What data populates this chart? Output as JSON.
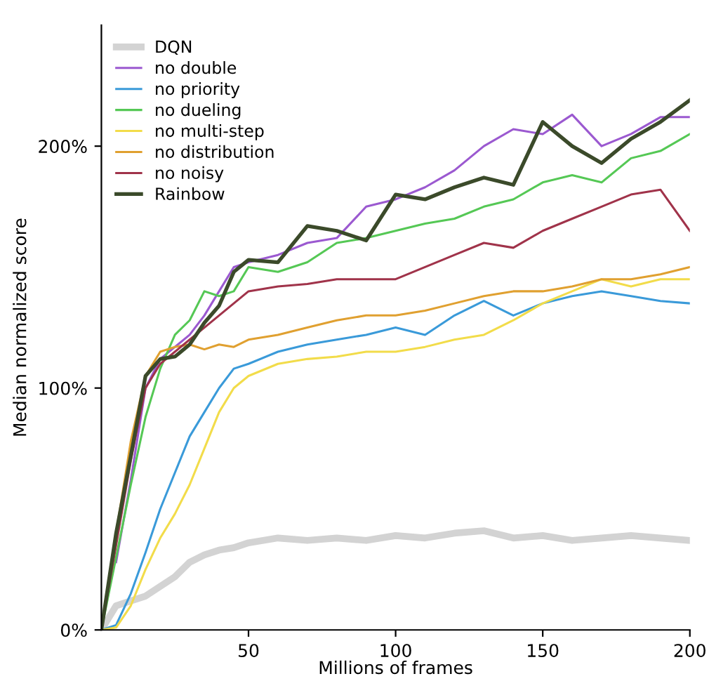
{
  "chart_data": {
    "type": "line",
    "xlabel": "Millions of frames",
    "ylabel": "Median normalized score",
    "x": [
      0,
      5,
      10,
      15,
      20,
      25,
      30,
      35,
      40,
      45,
      50,
      60,
      70,
      80,
      90,
      100,
      110,
      120,
      130,
      140,
      150,
      160,
      170,
      180,
      190,
      200
    ],
    "xlim": [
      0,
      200
    ],
    "xticks": [
      50,
      100,
      150,
      200
    ],
    "ylim": [
      0,
      250
    ],
    "yticks": [
      {
        "value": 0,
        "label": "0%"
      },
      {
        "value": 100,
        "label": "100%"
      },
      {
        "value": 200,
        "label": "200%"
      }
    ],
    "grid": false,
    "legend": "top left",
    "line_style": "solid",
    "marker": "none",
    "series": [
      {
        "name": "DQN",
        "color": "#d3d3d3",
        "values": [
          0,
          10,
          12,
          14,
          18,
          22,
          28,
          31,
          33,
          34,
          36,
          38,
          37,
          38,
          37,
          39,
          38,
          40,
          41,
          38,
          39,
          37,
          38,
          39,
          38,
          37
        ]
      },
      {
        "name": "no double",
        "color": "#9b59d0",
        "values": [
          null,
          28,
          62,
          100,
          112,
          117,
          122,
          130,
          140,
          150,
          152,
          155,
          160,
          162,
          175,
          178,
          183,
          190,
          200,
          207,
          205,
          213,
          200,
          205,
          212,
          212
        ]
      },
      {
        "name": "no priority",
        "color": "#3a9ad9",
        "values": [
          0,
          2,
          15,
          32,
          50,
          65,
          80,
          90,
          100,
          108,
          110,
          115,
          118,
          120,
          122,
          125,
          122,
          130,
          136,
          130,
          135,
          138,
          140,
          138,
          136,
          135
        ]
      },
      {
        "name": "no dueling",
        "color": "#55c855",
        "values": [
          0,
          30,
          60,
          88,
          108,
          122,
          128,
          140,
          138,
          140,
          150,
          148,
          152,
          160,
          162,
          165,
          168,
          170,
          175,
          178,
          185,
          188,
          185,
          195,
          198,
          205
        ]
      },
      {
        "name": "no multi-step",
        "color": "#f2dc4a",
        "values": [
          0,
          1,
          10,
          25,
          38,
          48,
          60,
          75,
          90,
          100,
          105,
          110,
          112,
          113,
          115,
          115,
          117,
          120,
          122,
          128,
          135,
          140,
          145,
          142,
          145,
          145
        ]
      },
      {
        "name": "no distribution",
        "color": "#e0a030",
        "values": [
          0,
          40,
          78,
          105,
          115,
          117,
          118,
          116,
          118,
          117,
          120,
          122,
          125,
          128,
          130,
          130,
          132,
          135,
          138,
          140,
          140,
          142,
          145,
          145,
          147,
          150
        ]
      },
      {
        "name": "no noisy",
        "color": "#a0334a",
        "values": [
          0,
          35,
          70,
          100,
          110,
          115,
          120,
          125,
          130,
          135,
          140,
          142,
          143,
          145,
          145,
          145,
          150,
          155,
          160,
          158,
          165,
          170,
          175,
          180,
          182,
          165
        ]
      },
      {
        "name": "Rainbow",
        "color": "#3b4a2a",
        "values": [
          0,
          40,
          72,
          105,
          112,
          113,
          118,
          127,
          134,
          148,
          153,
          152,
          167,
          165,
          161,
          180,
          178,
          183,
          187,
          184,
          210,
          200,
          193,
          203,
          210,
          219
        ]
      }
    ]
  }
}
